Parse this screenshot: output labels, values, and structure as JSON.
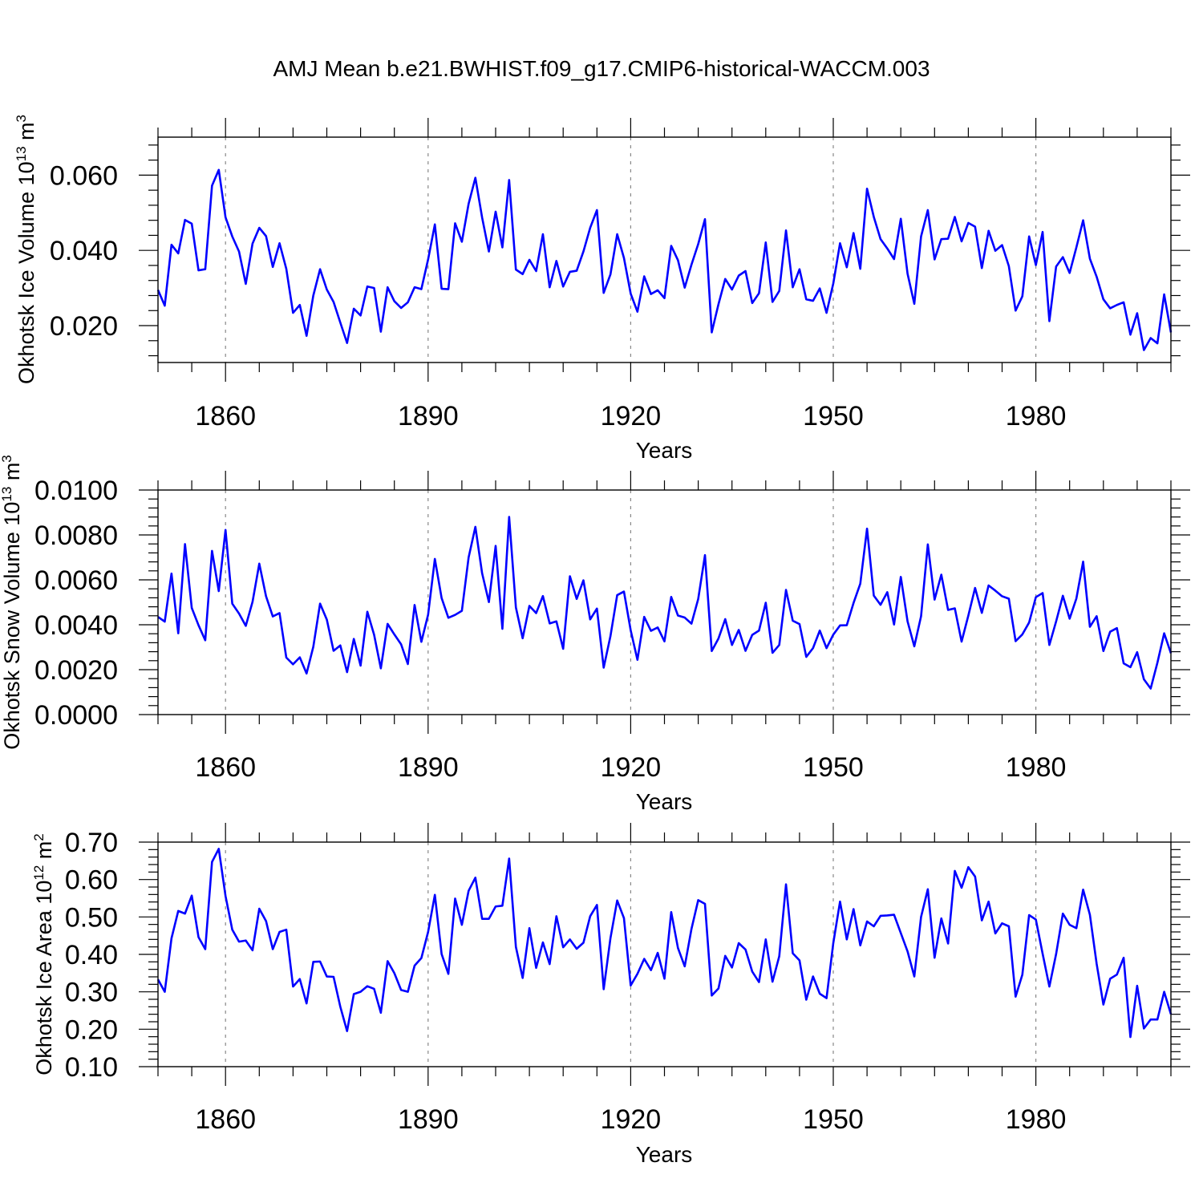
{
  "title": "AMJ Mean b.e21.BWHIST.f09_g17.CMIP6-historical-WACCM.003",
  "chart_data": [
    {
      "type": "line",
      "ylabel": "Okhotsk Ice Volume 10",
      "ylabel_exponent": "13",
      "ylabel_unit": " m",
      "ylabel_unit_exponent": "3",
      "xlabel": "Years",
      "xlim": [
        1850,
        2000
      ],
      "ylim": [
        0.0102,
        0.0701
      ],
      "yticks": [
        0.02,
        0.04,
        0.06
      ],
      "ytick_labels": [
        "0.020",
        "0.040",
        "0.060"
      ],
      "xticks": [
        1860,
        1890,
        1920,
        1950,
        1980
      ],
      "xtick_labels": [
        "1860",
        "1890",
        "1920",
        "1950",
        "1980"
      ],
      "grid": "vertical dashed at major x ticks",
      "series": [
        {
          "name": "Okhotsk Ice Volume",
          "color": "#0000ff",
          "x_start": 1850,
          "values": [
            0.0295,
            0.0253,
            0.0415,
            0.0392,
            0.0481,
            0.0471,
            0.0347,
            0.035,
            0.0572,
            0.0614,
            0.0488,
            0.0437,
            0.0397,
            0.0311,
            0.0418,
            0.046,
            0.0438,
            0.0356,
            0.0419,
            0.0351,
            0.0234,
            0.0255,
            0.0173,
            0.028,
            0.035,
            0.0296,
            0.0263,
            0.0208,
            0.0154,
            0.0245,
            0.0227,
            0.0304,
            0.03,
            0.0184,
            0.0302,
            0.0265,
            0.0247,
            0.0262,
            0.0302,
            0.0297,
            0.0376,
            0.0469,
            0.0298,
            0.0297,
            0.0472,
            0.0423,
            0.0524,
            0.0593,
            0.0487,
            0.0397,
            0.0503,
            0.0408,
            0.0587,
            0.0349,
            0.0337,
            0.0375,
            0.0345,
            0.0443,
            0.0302,
            0.0372,
            0.0304,
            0.0343,
            0.0346,
            0.0397,
            0.046,
            0.0507,
            0.0287,
            0.0336,
            0.0443,
            0.038,
            0.0285,
            0.0237,
            0.0331,
            0.0284,
            0.0294,
            0.0273,
            0.0412,
            0.0374,
            0.0301,
            0.0362,
            0.0417,
            0.0483,
            0.0182,
            0.0257,
            0.0324,
            0.0296,
            0.0333,
            0.0345,
            0.026,
            0.0286,
            0.0421,
            0.0263,
            0.0292,
            0.0453,
            0.0302,
            0.035,
            0.027,
            0.0266,
            0.0299,
            0.0234,
            0.0312,
            0.0419,
            0.0355,
            0.0446,
            0.0351,
            0.0564,
            0.0489,
            0.043,
            0.0405,
            0.0377,
            0.0484,
            0.0338,
            0.0258,
            0.0437,
            0.0507,
            0.0376,
            0.043,
            0.0431,
            0.0489,
            0.0424,
            0.0473,
            0.0463,
            0.0353,
            0.0452,
            0.0399,
            0.0414,
            0.0358,
            0.024,
            0.0278,
            0.0437,
            0.0361,
            0.0449,
            0.0212,
            0.0357,
            0.0382,
            0.034,
            0.0408,
            0.048,
            0.0378,
            0.033,
            0.027,
            0.0246,
            0.0255,
            0.0262,
            0.0176,
            0.0233,
            0.0135,
            0.0167,
            0.0153,
            0.0283,
            0.0182
          ]
        }
      ]
    },
    {
      "type": "line",
      "ylabel": "Okhotsk Snow Volume 10",
      "ylabel_exponent": "13",
      "ylabel_unit": " m",
      "ylabel_unit_exponent": "3",
      "xlabel": "Years",
      "xlim": [
        1850,
        2000
      ],
      "ylim": [
        0.0,
        0.01
      ],
      "yticks": [
        0.0,
        0.002,
        0.004,
        0.006,
        0.008,
        0.01
      ],
      "ytick_labels": [
        "0.0000",
        "0.0020",
        "0.0040",
        "0.0060",
        "0.0080",
        "0.0100"
      ],
      "xticks": [
        1860,
        1890,
        1920,
        1950,
        1980
      ],
      "xtick_labels": [
        "1860",
        "1890",
        "1920",
        "1950",
        "1980"
      ],
      "grid": "vertical dashed at major x ticks",
      "series": [
        {
          "name": "Okhotsk Snow Volume",
          "color": "#0000ff",
          "x_start": 1850,
          "values": [
            0.00435,
            0.00414,
            0.00628,
            0.00362,
            0.00759,
            0.00475,
            0.00398,
            0.00331,
            0.00729,
            0.0055,
            0.00822,
            0.00494,
            0.0045,
            0.00395,
            0.00502,
            0.00672,
            0.00527,
            0.00437,
            0.00452,
            0.00254,
            0.00224,
            0.00255,
            0.00183,
            0.00302,
            0.00494,
            0.00423,
            0.00284,
            0.00308,
            0.00189,
            0.00337,
            0.00218,
            0.00458,
            0.00356,
            0.00206,
            0.00404,
            0.00357,
            0.00313,
            0.00225,
            0.00488,
            0.00324,
            0.00445,
            0.00693,
            0.00519,
            0.00431,
            0.00444,
            0.00462,
            0.007,
            0.00836,
            0.00629,
            0.00501,
            0.00751,
            0.00382,
            0.0088,
            0.00477,
            0.0034,
            0.00484,
            0.00452,
            0.00528,
            0.00406,
            0.00415,
            0.00293,
            0.00616,
            0.00515,
            0.00598,
            0.00424,
            0.00472,
            0.00209,
            0.00349,
            0.00532,
            0.00548,
            0.00375,
            0.00244,
            0.00435,
            0.00373,
            0.00388,
            0.00326,
            0.00524,
            0.00441,
            0.00432,
            0.00405,
            0.00515,
            0.0071,
            0.00283,
            0.00339,
            0.00425,
            0.0031,
            0.00377,
            0.00284,
            0.00355,
            0.00374,
            0.00498,
            0.00275,
            0.0031,
            0.00555,
            0.00418,
            0.00403,
            0.00257,
            0.00296,
            0.00374,
            0.00296,
            0.00356,
            0.00397,
            0.00398,
            0.00497,
            0.00583,
            0.00828,
            0.0053,
            0.00489,
            0.00545,
            0.00401,
            0.00613,
            0.00415,
            0.00304,
            0.00438,
            0.00758,
            0.00512,
            0.00623,
            0.00466,
            0.00473,
            0.00325,
            0.00441,
            0.00564,
            0.00453,
            0.00575,
            0.00552,
            0.00527,
            0.00516,
            0.00327,
            0.00357,
            0.0041,
            0.00523,
            0.00541,
            0.0031,
            0.00415,
            0.00529,
            0.00427,
            0.00517,
            0.00681,
            0.00391,
            0.00438,
            0.00283,
            0.00369,
            0.00385,
            0.00228,
            0.00211,
            0.00278,
            0.00157,
            0.00116,
            0.00231,
            0.00362,
            0.00273
          ]
        }
      ]
    },
    {
      "type": "line",
      "ylabel": "Okhotsk Ice Area 10",
      "ylabel_exponent": "12",
      "ylabel_unit": " m",
      "ylabel_unit_exponent": "2",
      "xlabel": "Years",
      "xlim": [
        1850,
        2000
      ],
      "ylim": [
        0.1,
        0.7
      ],
      "yticks": [
        0.1,
        0.2,
        0.3,
        0.4,
        0.5,
        0.6,
        0.7
      ],
      "ytick_labels": [
        "0.10",
        "0.20",
        "0.30",
        "0.40",
        "0.50",
        "0.60",
        "0.70"
      ],
      "xticks": [
        1860,
        1890,
        1920,
        1950,
        1980
      ],
      "xtick_labels": [
        "1860",
        "1890",
        "1920",
        "1950",
        "1980"
      ],
      "grid": "vertical dashed at major x ticks",
      "series": [
        {
          "name": "Okhotsk Ice Area",
          "color": "#0000ff",
          "x_start": 1850,
          "values": [
            0.333,
            0.3,
            0.443,
            0.516,
            0.509,
            0.557,
            0.446,
            0.414,
            0.647,
            0.682,
            0.556,
            0.466,
            0.434,
            0.437,
            0.411,
            0.522,
            0.489,
            0.414,
            0.46,
            0.466,
            0.314,
            0.334,
            0.269,
            0.38,
            0.381,
            0.341,
            0.34,
            0.26,
            0.195,
            0.294,
            0.3,
            0.315,
            0.308,
            0.244,
            0.382,
            0.35,
            0.305,
            0.3,
            0.37,
            0.39,
            0.46,
            0.559,
            0.401,
            0.348,
            0.549,
            0.479,
            0.57,
            0.605,
            0.495,
            0.495,
            0.528,
            0.53,
            0.656,
            0.42,
            0.337,
            0.47,
            0.364,
            0.432,
            0.374,
            0.502,
            0.419,
            0.44,
            0.415,
            0.431,
            0.502,
            0.532,
            0.307,
            0.443,
            0.544,
            0.497,
            0.317,
            0.348,
            0.388,
            0.358,
            0.404,
            0.335,
            0.513,
            0.417,
            0.368,
            0.468,
            0.545,
            0.535,
            0.29,
            0.309,
            0.396,
            0.365,
            0.43,
            0.413,
            0.354,
            0.326,
            0.44,
            0.327,
            0.395,
            0.587,
            0.403,
            0.384,
            0.279,
            0.341,
            0.295,
            0.283,
            0.43,
            0.541,
            0.44,
            0.521,
            0.424,
            0.488,
            0.475,
            0.503,
            0.504,
            0.506,
            0.457,
            0.408,
            0.341,
            0.5,
            0.574,
            0.391,
            0.496,
            0.429,
            0.623,
            0.578,
            0.633,
            0.608,
            0.491,
            0.541,
            0.456,
            0.483,
            0.475,
            0.287,
            0.346,
            0.505,
            0.493,
            0.402,
            0.314,
            0.401,
            0.509,
            0.479,
            0.47,
            0.573,
            0.506,
            0.375,
            0.266,
            0.335,
            0.346,
            0.391,
            0.179,
            0.316,
            0.202,
            0.226,
            0.226,
            0.3,
            0.24
          ]
        }
      ]
    }
  ]
}
